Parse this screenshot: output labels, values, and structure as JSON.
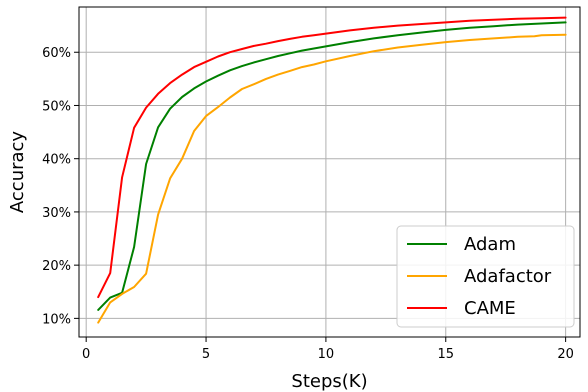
{
  "chart_data": {
    "type": "line",
    "title": "",
    "xlabel": "Steps(K)",
    "ylabel": "Accuracy",
    "xlim": [
      -0.3,
      20.6
    ],
    "ylim": [
      6.5,
      68.5
    ],
    "xticks": [
      0,
      5,
      10,
      15,
      20
    ],
    "xtick_labels": [
      "0",
      "5",
      "10",
      "15",
      "20"
    ],
    "yticks": [
      10,
      20,
      30,
      40,
      50,
      60
    ],
    "ytick_labels": [
      "10%",
      "20%",
      "30%",
      "40%",
      "50%",
      "60%"
    ],
    "grid": true,
    "legend_position": "lower-right",
    "series": [
      {
        "name": "Adam",
        "color": "#008000",
        "x": [
          0.5,
          1,
          1.5,
          2,
          2.5,
          3,
          3.5,
          4,
          4.5,
          5,
          5.5,
          6,
          6.5,
          7,
          7.5,
          8,
          8.5,
          9,
          9.5,
          10,
          11,
          12,
          13,
          14,
          15,
          16,
          17,
          18,
          19,
          20
        ],
        "y": [
          11.6,
          13.9,
          14.8,
          23.4,
          39,
          45.9,
          49.4,
          51.6,
          53.2,
          54.5,
          55.6,
          56.6,
          57.4,
          58.1,
          58.7,
          59.3,
          59.8,
          60.3,
          60.7,
          61.1,
          61.9,
          62.6,
          63.2,
          63.7,
          64.2,
          64.6,
          64.9,
          65.2,
          65.4,
          65.6
        ]
      },
      {
        "name": "Adafactor",
        "color": "#FFA500",
        "x": [
          0.5,
          1,
          1.5,
          2,
          2.5,
          3,
          3.5,
          4,
          4.5,
          5,
          5.5,
          6,
          6.5,
          7,
          7.5,
          8,
          8.5,
          9,
          9.5,
          10,
          11,
          12,
          13,
          14,
          15,
          16,
          17,
          18,
          18.7,
          19,
          20
        ],
        "y": [
          9.2,
          13,
          14.6,
          15.9,
          18.4,
          29.5,
          36.3,
          40,
          45.2,
          48,
          49.7,
          51.5,
          53.1,
          54,
          55,
          55.8,
          56.5,
          57.2,
          57.7,
          58.3,
          59.3,
          60.2,
          60.9,
          61.4,
          61.9,
          62.3,
          62.6,
          62.9,
          63,
          63.2,
          63.3
        ]
      },
      {
        "name": "CAME",
        "color": "#FF0000",
        "x": [
          0.5,
          1,
          1.5,
          2,
          2.5,
          3,
          3.5,
          4,
          4.5,
          5,
          5.5,
          6,
          6.5,
          7,
          7.5,
          8,
          8.5,
          9,
          9.5,
          10,
          11,
          12,
          13,
          14,
          15,
          16,
          17,
          18,
          19,
          20
        ],
        "y": [
          14,
          18.5,
          36.5,
          45.8,
          49.6,
          52.2,
          54.2,
          55.8,
          57.2,
          58.2,
          59.2,
          60,
          60.6,
          61.2,
          61.6,
          62.1,
          62.5,
          62.9,
          63.2,
          63.5,
          64.1,
          64.6,
          65,
          65.3,
          65.6,
          65.9,
          66.1,
          66.3,
          66.4,
          66.5
        ]
      }
    ]
  }
}
